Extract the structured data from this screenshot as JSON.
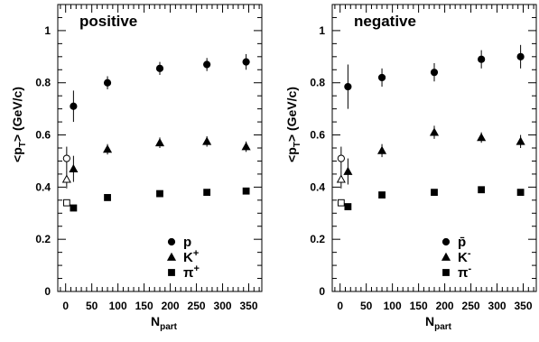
{
  "chart_data": [
    {
      "type": "scatter",
      "panel_label": "positive",
      "xlabel": "N_part",
      "ylabel": "<p_T> (GeV/c)",
      "xlim": [
        -15,
        375
      ],
      "ylim": [
        0,
        1.1
      ],
      "x_ticks": [
        0,
        50,
        100,
        150,
        200,
        250,
        300,
        350
      ],
      "y_ticks": [
        0,
        0.2,
        0.4,
        0.6,
        0.8,
        1
      ],
      "legend": [
        "p",
        "K+",
        "π+"
      ],
      "series": [
        {
          "name": "p",
          "marker": "circle",
          "filled": true,
          "points": [
            {
              "x": 15,
              "y": 0.71,
              "err": 0.06
            },
            {
              "x": 80,
              "y": 0.8,
              "err": 0.025
            },
            {
              "x": 180,
              "y": 0.855,
              "err": 0.025
            },
            {
              "x": 270,
              "y": 0.87,
              "err": 0.025
            },
            {
              "x": 345,
              "y": 0.88,
              "err": 0.03
            }
          ]
        },
        {
          "name": "K+",
          "marker": "triangle",
          "filled": true,
          "points": [
            {
              "x": 15,
              "y": 0.47,
              "err": 0.05
            },
            {
              "x": 80,
              "y": 0.545,
              "err": 0.02
            },
            {
              "x": 180,
              "y": 0.57,
              "err": 0.02
            },
            {
              "x": 270,
              "y": 0.575,
              "err": 0.02
            },
            {
              "x": 345,
              "y": 0.555,
              "err": 0.02
            }
          ]
        },
        {
          "name": "π+",
          "marker": "square",
          "filled": true,
          "points": [
            {
              "x": 15,
              "y": 0.32,
              "err": 0.01
            },
            {
              "x": 80,
              "y": 0.36,
              "err": 0.008
            },
            {
              "x": 180,
              "y": 0.375,
              "err": 0.008
            },
            {
              "x": 270,
              "y": 0.38,
              "err": 0.008
            },
            {
              "x": 345,
              "y": 0.385,
              "err": 0.008
            }
          ]
        },
        {
          "name": "",
          "marker": "circle",
          "filled": false,
          "points": [
            {
              "x": 2,
              "y": 0.51,
              "err": 0.045
            }
          ]
        },
        {
          "name": "",
          "marker": "triangle",
          "filled": false,
          "points": [
            {
              "x": 2,
              "y": 0.43,
              "err": 0.035
            }
          ]
        },
        {
          "name": "",
          "marker": "square",
          "filled": false,
          "points": [
            {
              "x": 2,
              "y": 0.34,
              "err": 0.012
            }
          ]
        }
      ]
    },
    {
      "type": "scatter",
      "panel_label": "negative",
      "xlabel": "N_part",
      "ylabel": "<p_T> (GeV/c)",
      "xlim": [
        -15,
        375
      ],
      "ylim": [
        0,
        1.1
      ],
      "x_ticks": [
        0,
        50,
        100,
        150,
        200,
        250,
        300,
        350
      ],
      "y_ticks": [
        0,
        0.2,
        0.4,
        0.6,
        0.8,
        1
      ],
      "legend": [
        "p̄",
        "K-",
        "π-"
      ],
      "series": [
        {
          "name": "p̄",
          "marker": "circle",
          "filled": true,
          "points": [
            {
              "x": 15,
              "y": 0.785,
              "err": 0.085
            },
            {
              "x": 80,
              "y": 0.82,
              "err": 0.035
            },
            {
              "x": 180,
              "y": 0.84,
              "err": 0.035
            },
            {
              "x": 270,
              "y": 0.89,
              "err": 0.035
            },
            {
              "x": 345,
              "y": 0.9,
              "err": 0.045
            }
          ]
        },
        {
          "name": "K-",
          "marker": "triangle",
          "filled": true,
          "points": [
            {
              "x": 15,
              "y": 0.46,
              "err": 0.05
            },
            {
              "x": 80,
              "y": 0.54,
              "err": 0.025
            },
            {
              "x": 180,
              "y": 0.61,
              "err": 0.025
            },
            {
              "x": 270,
              "y": 0.59,
              "err": 0.02
            },
            {
              "x": 345,
              "y": 0.575,
              "err": 0.025
            }
          ]
        },
        {
          "name": "π-",
          "marker": "square",
          "filled": true,
          "points": [
            {
              "x": 15,
              "y": 0.325,
              "err": 0.01
            },
            {
              "x": 80,
              "y": 0.37,
              "err": 0.008
            },
            {
              "x": 180,
              "y": 0.38,
              "err": 0.008
            },
            {
              "x": 270,
              "y": 0.39,
              "err": 0.008
            },
            {
              "x": 345,
              "y": 0.38,
              "err": 0.008
            }
          ]
        },
        {
          "name": "",
          "marker": "circle",
          "filled": false,
          "points": [
            {
              "x": 2,
              "y": 0.51,
              "err": 0.045
            }
          ]
        },
        {
          "name": "",
          "marker": "triangle",
          "filled": false,
          "points": [
            {
              "x": 2,
              "y": 0.43,
              "err": 0.035
            }
          ]
        },
        {
          "name": "",
          "marker": "square",
          "filled": false,
          "points": [
            {
              "x": 2,
              "y": 0.34,
              "err": 0.012
            }
          ]
        }
      ]
    }
  ]
}
